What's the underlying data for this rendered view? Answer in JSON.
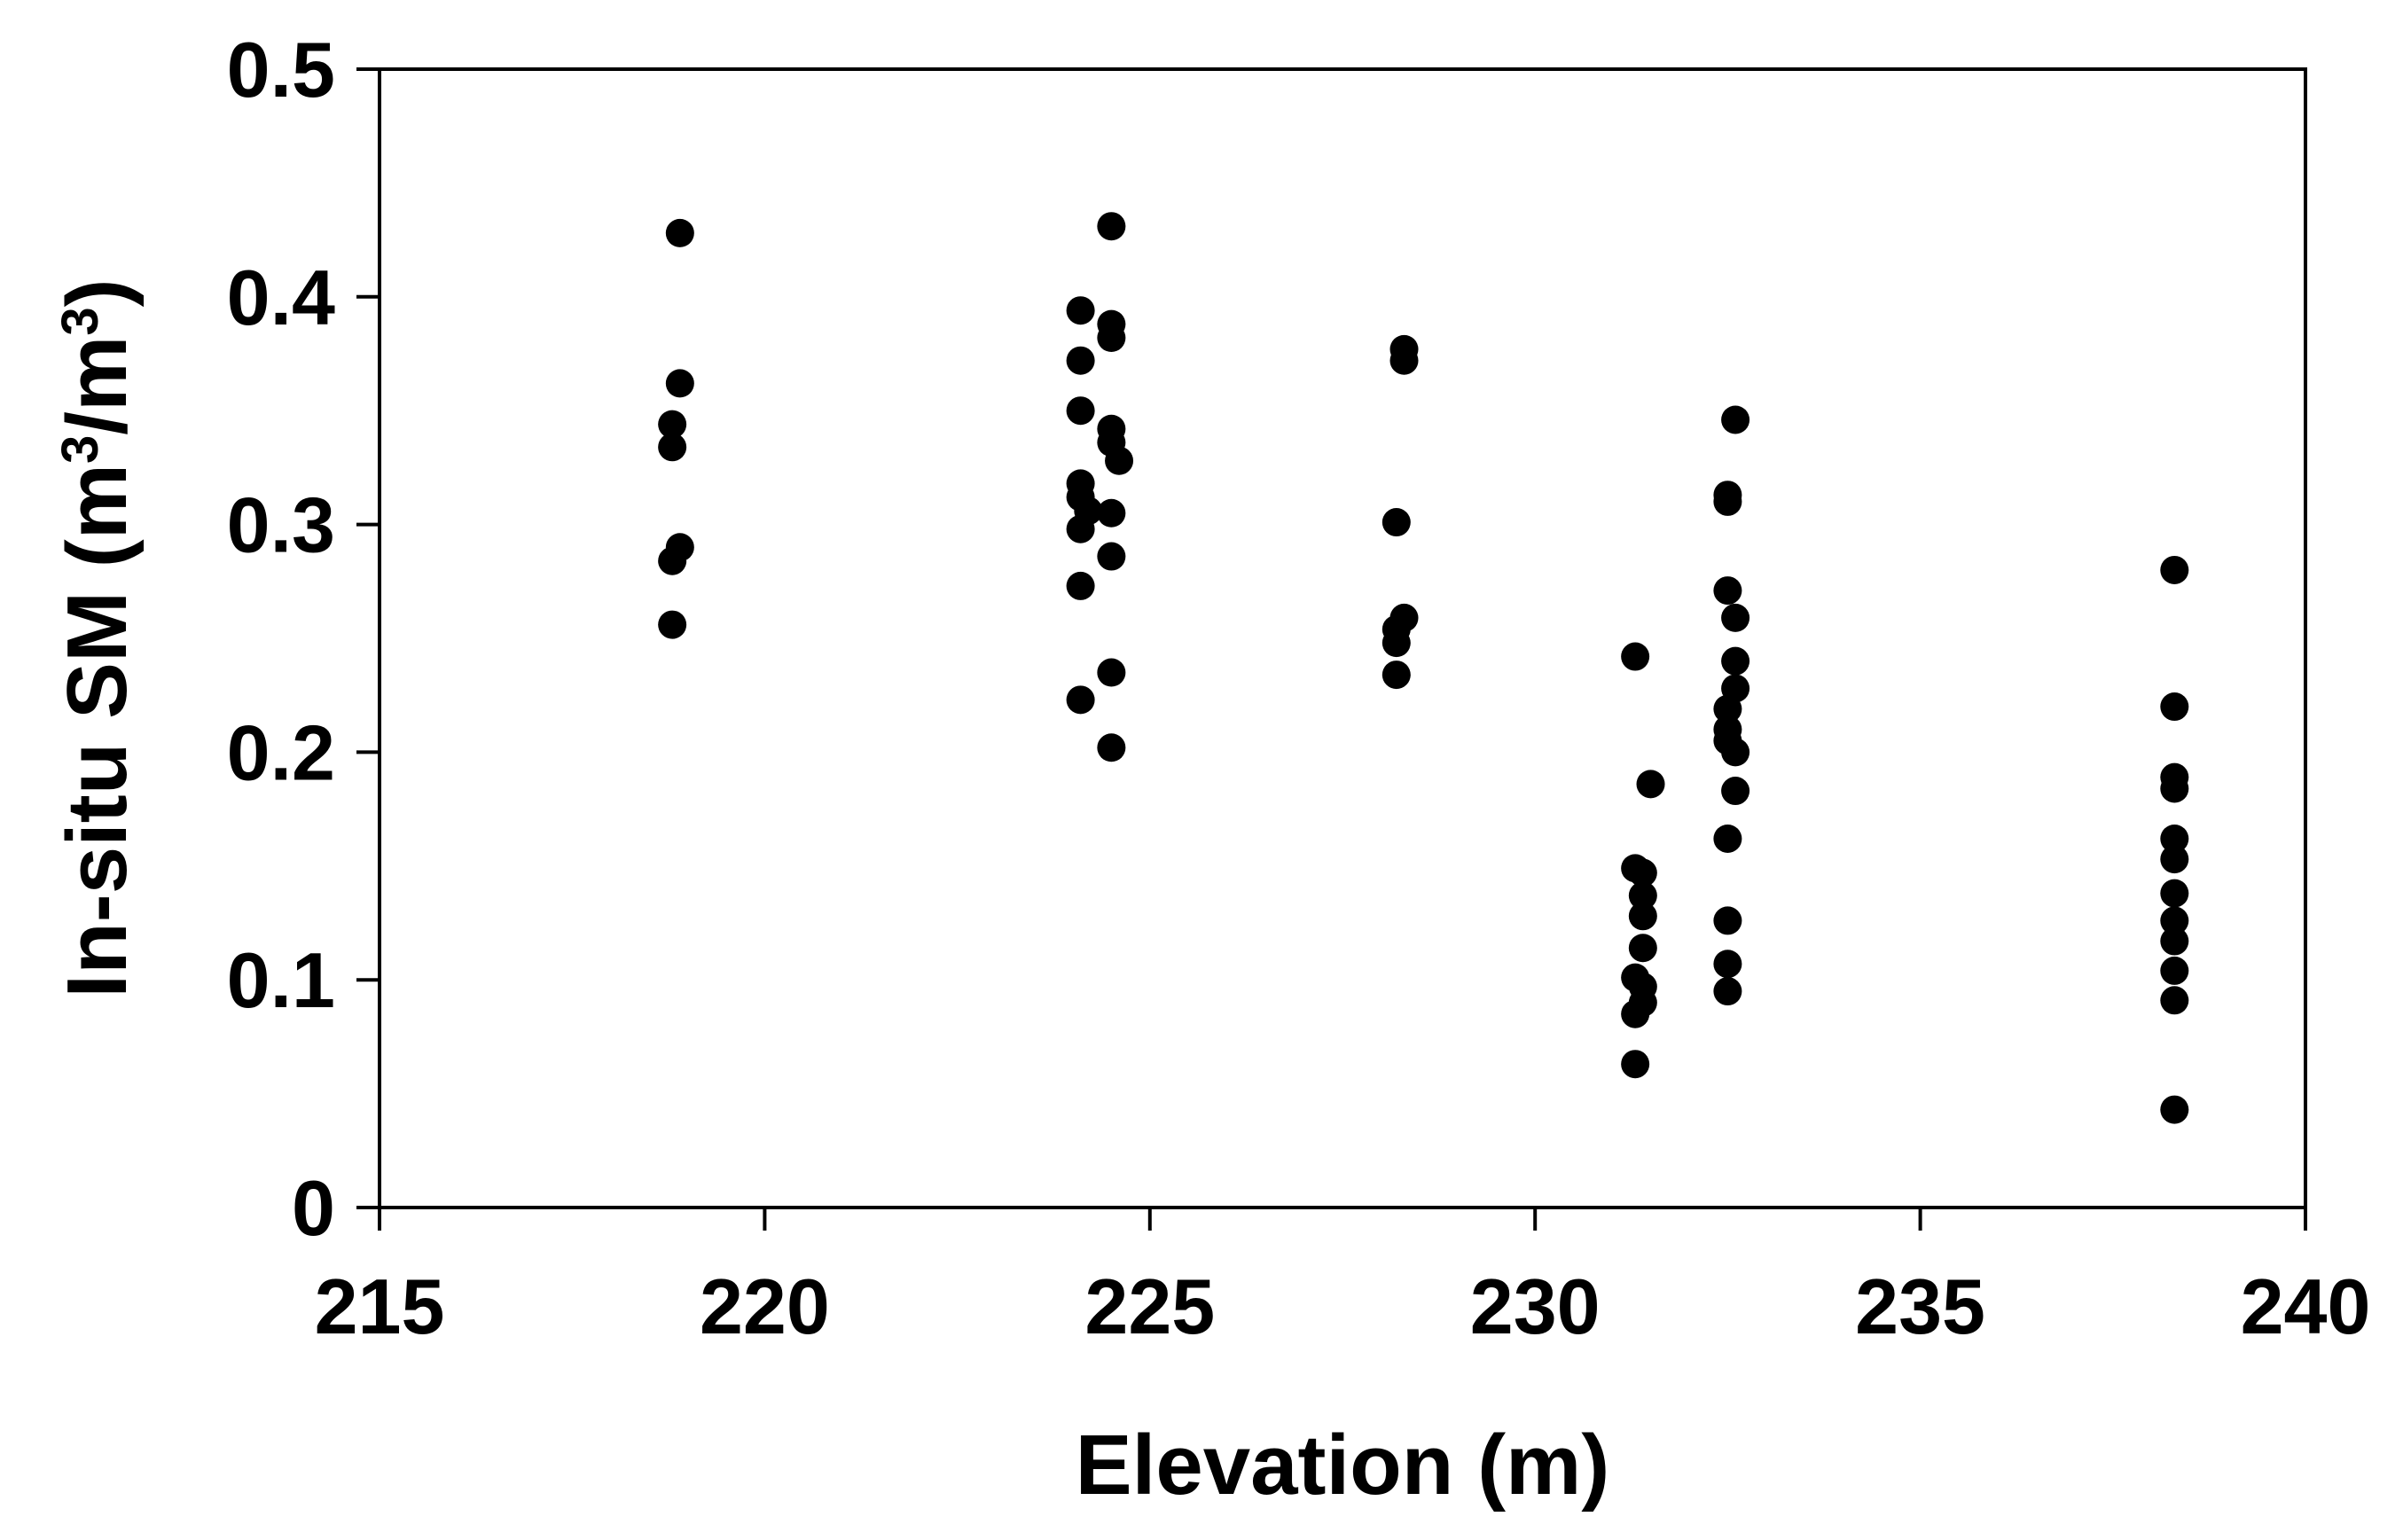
{
  "chart_data": {
    "type": "scatter",
    "title": "",
    "xlabel": "Elevation (m)",
    "ylabel": {
      "parts": [
        {
          "text": "In-situ SM (m"
        },
        {
          "text": "3",
          "sup": true
        },
        {
          "text": "/m"
        },
        {
          "text": "3",
          "sup": true
        },
        {
          "text": ")"
        }
      ]
    },
    "xlim": [
      215,
      240
    ],
    "ylim": [
      0,
      0.5
    ],
    "xticks": [
      215,
      220,
      225,
      230,
      235,
      240
    ],
    "xtick_labels": [
      "215",
      "220",
      "225",
      "230",
      "235",
      "240"
    ],
    "yticks": [
      0,
      0.1,
      0.2,
      0.3,
      0.4,
      0.5
    ],
    "ytick_labels": [
      "0",
      "0.1",
      "0.2",
      "0.3",
      "0.4",
      "0.5"
    ],
    "grid": false,
    "legend": "none",
    "marker_color": "#000000",
    "points": [
      [
        218.9,
        0.428
      ],
      [
        218.9,
        0.362
      ],
      [
        218.8,
        0.344
      ],
      [
        218.8,
        0.334
      ],
      [
        218.9,
        0.29
      ],
      [
        218.8,
        0.284
      ],
      [
        218.8,
        0.256
      ],
      [
        224.5,
        0.431
      ],
      [
        224.1,
        0.394
      ],
      [
        224.5,
        0.388
      ],
      [
        224.5,
        0.382
      ],
      [
        224.1,
        0.372
      ],
      [
        224.5,
        0.342
      ],
      [
        224.5,
        0.336
      ],
      [
        224.6,
        0.328
      ],
      [
        224.1,
        0.35
      ],
      [
        224.1,
        0.318
      ],
      [
        224.1,
        0.312
      ],
      [
        224.2,
        0.306
      ],
      [
        224.5,
        0.305
      ],
      [
        224.1,
        0.298
      ],
      [
        224.5,
        0.286
      ],
      [
        224.1,
        0.273
      ],
      [
        224.5,
        0.235
      ],
      [
        224.1,
        0.223
      ],
      [
        224.5,
        0.202
      ],
      [
        228.3,
        0.377
      ],
      [
        228.3,
        0.372
      ],
      [
        228.2,
        0.301
      ],
      [
        228.3,
        0.259
      ],
      [
        228.2,
        0.254
      ],
      [
        228.2,
        0.248
      ],
      [
        228.2,
        0.234
      ],
      [
        231.3,
        0.242
      ],
      [
        231.5,
        0.186
      ],
      [
        231.3,
        0.149
      ],
      [
        231.4,
        0.147
      ],
      [
        231.4,
        0.137
      ],
      [
        231.4,
        0.128
      ],
      [
        231.4,
        0.114
      ],
      [
        231.3,
        0.101
      ],
      [
        231.4,
        0.097
      ],
      [
        231.4,
        0.09
      ],
      [
        231.3,
        0.085
      ],
      [
        231.3,
        0.063
      ],
      [
        232.6,
        0.346
      ],
      [
        232.5,
        0.31
      ],
      [
        232.5,
        0.313
      ],
      [
        232.5,
        0.271
      ],
      [
        232.6,
        0.259
      ],
      [
        232.6,
        0.24
      ],
      [
        232.6,
        0.228
      ],
      [
        232.5,
        0.219
      ],
      [
        232.5,
        0.21
      ],
      [
        232.5,
        0.205
      ],
      [
        232.6,
        0.2
      ],
      [
        232.6,
        0.183
      ],
      [
        232.5,
        0.162
      ],
      [
        232.5,
        0.126
      ],
      [
        232.5,
        0.107
      ],
      [
        232.5,
        0.095
      ],
      [
        238.3,
        0.28
      ],
      [
        238.3,
        0.22
      ],
      [
        238.3,
        0.189
      ],
      [
        238.3,
        0.184
      ],
      [
        238.3,
        0.162
      ],
      [
        238.3,
        0.153
      ],
      [
        238.3,
        0.138
      ],
      [
        238.3,
        0.126
      ],
      [
        238.3,
        0.117
      ],
      [
        238.3,
        0.104
      ],
      [
        238.3,
        0.091
      ],
      [
        238.3,
        0.043
      ]
    ]
  }
}
